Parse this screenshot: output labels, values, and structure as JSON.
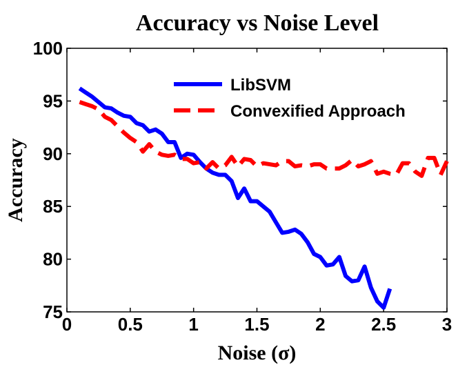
{
  "chart_data": {
    "type": "line",
    "title": "Accuracy vs Noise Level",
    "xlabel": "Noise (σ)",
    "ylabel": "Accuracy",
    "xlim": [
      0,
      3
    ],
    "ylim": [
      75,
      100
    ],
    "xticks": [
      0,
      0.5,
      1,
      1.5,
      2,
      2.5,
      3
    ],
    "xtick_labels": [
      "0",
      "0.5",
      "1",
      "1.5",
      "2",
      "2.5",
      "3"
    ],
    "yticks": [
      75,
      80,
      85,
      90,
      95,
      100
    ],
    "ytick_labels": [
      "75",
      "80",
      "85",
      "90",
      "95",
      "100"
    ],
    "grid": false,
    "legend_position": "top-right",
    "x": [
      0.1,
      0.15,
      0.2,
      0.25,
      0.3,
      0.35,
      0.4,
      0.45,
      0.5,
      0.55,
      0.6,
      0.65,
      0.7,
      0.75,
      0.8,
      0.85,
      0.9,
      0.95,
      1.0,
      1.05,
      1.1,
      1.15,
      1.2,
      1.25,
      1.3,
      1.35,
      1.4,
      1.45,
      1.5,
      1.55,
      1.6,
      1.65,
      1.7,
      1.75,
      1.8,
      1.85,
      1.9,
      1.95,
      2.0,
      2.05,
      2.1,
      2.15,
      2.2,
      2.25,
      2.3,
      2.35,
      2.4,
      2.45,
      2.5,
      2.55,
      2.6,
      2.65,
      2.7,
      2.75,
      2.8,
      2.85,
      2.9,
      2.95,
      3.0
    ],
    "series": [
      {
        "name": "LibSVM",
        "color": "#0000ff",
        "style": "solid",
        "values": [
          96.2,
          95.8,
          95.4,
          94.9,
          94.4,
          94.3,
          93.9,
          93.6,
          93.5,
          92.9,
          92.7,
          92.1,
          92.3,
          91.9,
          91.1,
          91.1,
          89.6,
          90.0,
          89.9,
          89.2,
          88.6,
          88.2,
          88.0,
          88.0,
          87.4,
          85.8,
          86.7,
          85.5,
          85.5,
          85.0,
          84.5,
          83.5,
          82.5,
          82.6,
          82.8,
          82.4,
          81.6,
          80.5,
          80.2,
          79.4,
          79.5,
          80.2,
          78.4,
          77.9,
          78.0,
          79.3,
          77.3,
          76.0,
          75.4,
          77.2,
          null,
          null,
          null,
          null,
          null,
          null,
          null,
          null,
          null
        ]
      },
      {
        "name": "Convexified Approach",
        "color": "#ff0000",
        "style": "dashed",
        "values": [
          94.9,
          94.7,
          94.5,
          94.2,
          93.5,
          93.2,
          92.6,
          92.0,
          91.5,
          91.1,
          90.2,
          90.9,
          90.2,
          89.9,
          89.8,
          89.9,
          89.5,
          89.5,
          89.1,
          89.2,
          88.6,
          89.2,
          88.6,
          88.9,
          89.7,
          88.8,
          89.5,
          89.4,
          88.8,
          89.1,
          89.0,
          88.9,
          89.3,
          89.3,
          88.8,
          88.9,
          88.8,
          89.0,
          89.0,
          88.6,
          88.6,
          88.6,
          88.9,
          89.4,
          88.8,
          89.0,
          89.3,
          88.1,
          88.3,
          88.1,
          88.0,
          89.1,
          89.1,
          88.3,
          87.9,
          89.6,
          89.6,
          88.0,
          89.3
        ]
      }
    ]
  }
}
